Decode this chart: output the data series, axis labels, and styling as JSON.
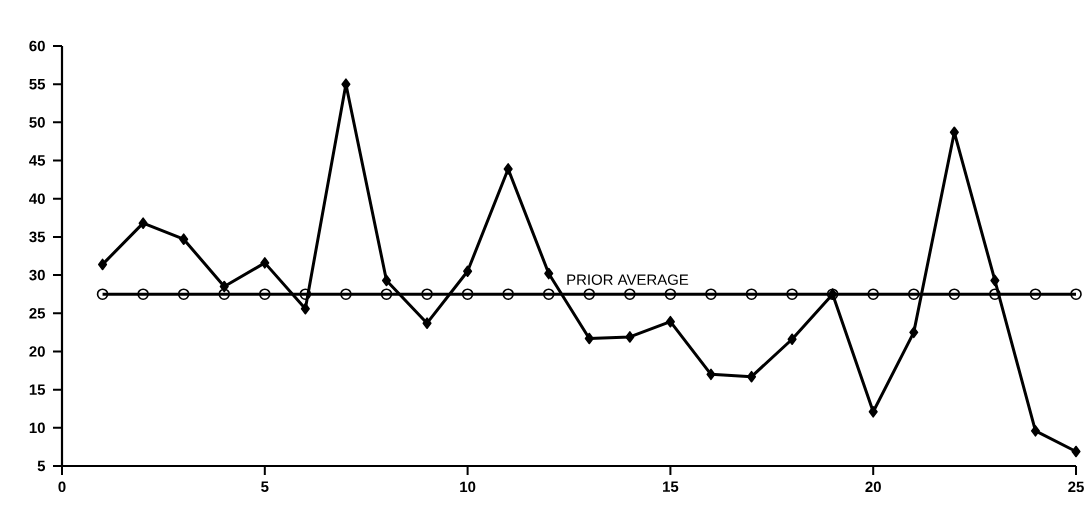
{
  "chart_data": {
    "type": "line",
    "x": [
      1,
      2,
      3,
      4,
      5,
      6,
      7,
      8,
      9,
      10,
      11,
      12,
      13,
      14,
      15,
      16,
      17,
      18,
      19,
      20,
      21,
      22,
      23,
      24,
      25
    ],
    "series": [
      {
        "color": "#000000",
        "marker": "diamond",
        "values": [
          31.4,
          36.8,
          34.7,
          28.5,
          31.6,
          25.6,
          55,
          29.3,
          23.7,
          30.5,
          43.9,
          30.2,
          21.7,
          21.9,
          23.9,
          17.0,
          16.7,
          21.6,
          27.5,
          12.1,
          22.5,
          48.7,
          29.3,
          9.6,
          6.9
        ]
      },
      {
        "name": "PRIOR AVERAGE",
        "color": "#000000",
        "marker": "circle",
        "values": [
          27.5,
          27.5,
          27.5,
          27.5,
          27.5,
          27.5,
          27.5,
          27.5,
          27.5,
          27.5,
          27.5,
          27.5,
          27.5,
          27.5,
          27.5,
          27.5,
          27.5,
          27.5,
          27.5,
          27.5,
          27.5,
          27.5,
          27.5,
          27.5,
          27.5
        ]
      }
    ],
    "xlim": [
      0,
      25
    ],
    "ylim": [
      5,
      60
    ],
    "xticks": [
      0,
      5,
      10,
      15,
      20,
      25
    ],
    "yticks": [
      5,
      10,
      15,
      20,
      25,
      30,
      35,
      40,
      45,
      50,
      55,
      60
    ],
    "grid": false,
    "line_style": "solid"
  }
}
